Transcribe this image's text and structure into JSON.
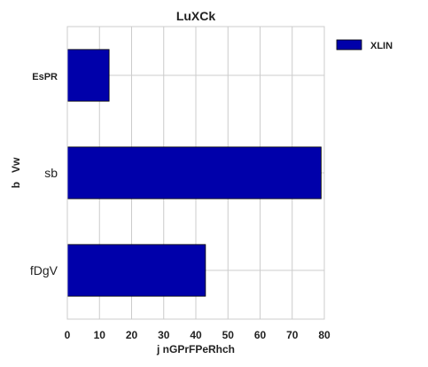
{
  "chart_data": {
    "type": "bar",
    "orientation": "horizontal",
    "title": "LuXCk",
    "xlabel": "j nGPrFPeRhch",
    "ylabel": "b   Vw",
    "categories": [
      "EsPR",
      "sb",
      "fDgV"
    ],
    "series": [
      {
        "name": "XLIN",
        "values": [
          13,
          79,
          43
        ],
        "color": "#0000aa"
      }
    ],
    "xlim": [
      0,
      80
    ],
    "xticks": [
      0,
      10,
      20,
      30,
      40,
      50,
      60,
      70,
      80
    ],
    "grid": true,
    "legend_position": "top-right"
  }
}
